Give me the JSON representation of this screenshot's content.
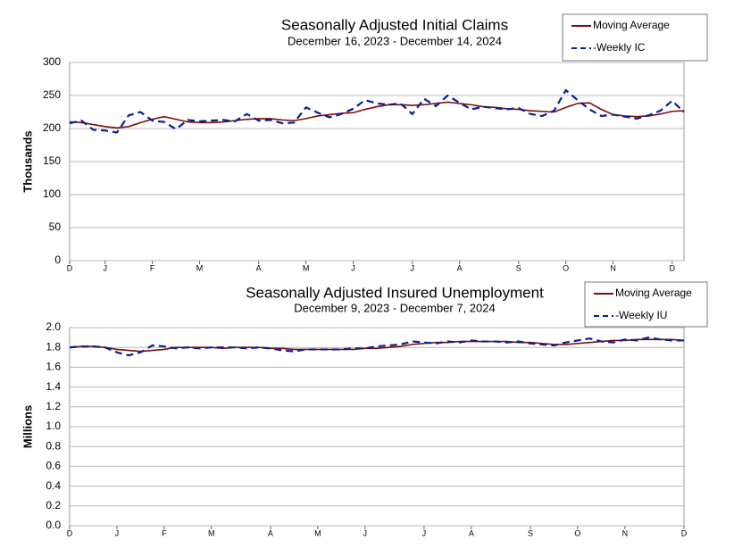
{
  "chart_data": [
    {
      "type": "line",
      "title": "Seasonally Adjusted Initial Claims",
      "subtitle": "December 16, 2023 - December 14, 2024",
      "y_label": "Thousands",
      "categories": [
        "D",
        null,
        null,
        "J",
        null,
        null,
        null,
        "F",
        null,
        null,
        null,
        "M",
        null,
        null,
        null,
        null,
        "A",
        null,
        null,
        null,
        "M",
        null,
        null,
        null,
        "J",
        null,
        null,
        null,
        null,
        "J",
        null,
        null,
        null,
        "A",
        null,
        null,
        null,
        null,
        "S",
        null,
        null,
        null,
        "O",
        null,
        null,
        null,
        "N",
        null,
        null,
        null,
        null,
        "D",
        null
      ],
      "series": [
        {
          "name": "Moving Average",
          "color": "#7b0c0c",
          "style": "solid",
          "values": [
            210,
            209,
            206,
            203,
            201,
            203,
            209,
            214,
            218,
            214,
            210,
            209,
            209,
            210,
            212,
            214,
            215,
            215,
            213,
            212,
            215,
            219,
            221,
            223,
            224,
            229,
            233,
            236,
            236,
            235,
            236,
            238,
            240,
            238,
            236,
            233,
            232,
            230,
            229,
            227,
            226,
            225,
            232,
            238,
            239,
            229,
            221,
            219,
            218,
            219,
            222,
            226,
            227
          ]
        },
        {
          "name": "-Weekly IC",
          "color": "#0a1f8f",
          "style": "dashed",
          "values": [
            208,
            212,
            198,
            197,
            194,
            220,
            225,
            212,
            210,
            199,
            213,
            211,
            212,
            213,
            211,
            222,
            212,
            213,
            208,
            209,
            232,
            224,
            217,
            222,
            230,
            243,
            238,
            236,
            238,
            222,
            245,
            234,
            250,
            239,
            229,
            233,
            231,
            229,
            231,
            222,
            219,
            227,
            258,
            243,
            229,
            219,
            221,
            218,
            215,
            220,
            227,
            242,
            225
          ]
        }
      ],
      "ylim": [
        0,
        300
      ],
      "yticks": [
        0,
        50,
        100,
        150,
        200,
        250,
        300
      ],
      "grid": true,
      "legend": "top-right"
    },
    {
      "type": "line",
      "title": "Seasonally Adjusted Insured Unemployment",
      "subtitle": "December 9, 2023 - December 7, 2024",
      "y_label": "Millions",
      "categories": [
        "D",
        null,
        null,
        null,
        "J",
        null,
        null,
        null,
        "F",
        null,
        null,
        null,
        "M",
        null,
        null,
        null,
        null,
        "A",
        null,
        null,
        null,
        "M",
        null,
        null,
        null,
        "J",
        null,
        null,
        null,
        null,
        "J",
        null,
        null,
        null,
        "A",
        null,
        null,
        null,
        null,
        "S",
        null,
        null,
        null,
        "O",
        null,
        null,
        null,
        "N",
        null,
        null,
        null,
        null,
        "D"
      ],
      "series": [
        {
          "name": "Moving Average",
          "color": "#7b0c0c",
          "style": "solid",
          "values": [
            1.8,
            1.81,
            1.81,
            1.8,
            1.78,
            1.77,
            1.76,
            1.77,
            1.78,
            1.8,
            1.8,
            1.8,
            1.8,
            1.79,
            1.8,
            1.8,
            1.8,
            1.79,
            1.79,
            1.78,
            1.78,
            1.78,
            1.78,
            1.78,
            1.78,
            1.79,
            1.79,
            1.8,
            1.81,
            1.83,
            1.84,
            1.85,
            1.85,
            1.86,
            1.86,
            1.86,
            1.86,
            1.86,
            1.85,
            1.85,
            1.84,
            1.83,
            1.83,
            1.84,
            1.85,
            1.86,
            1.87,
            1.87,
            1.88,
            1.88,
            1.88,
            1.88,
            1.87
          ]
        },
        {
          "name": "-Weekly IU",
          "color": "#0a1f8f",
          "style": "dashed",
          "values": [
            1.8,
            1.81,
            1.81,
            1.8,
            1.75,
            1.72,
            1.75,
            1.82,
            1.81,
            1.79,
            1.8,
            1.79,
            1.8,
            1.8,
            1.8,
            1.79,
            1.8,
            1.79,
            1.77,
            1.76,
            1.78,
            1.78,
            1.78,
            1.78,
            1.79,
            1.79,
            1.81,
            1.82,
            1.83,
            1.86,
            1.85,
            1.84,
            1.86,
            1.85,
            1.87,
            1.86,
            1.86,
            1.85,
            1.86,
            1.84,
            1.83,
            1.82,
            1.85,
            1.87,
            1.89,
            1.86,
            1.85,
            1.88,
            1.87,
            1.9,
            1.88,
            1.87,
            1.87
          ]
        }
      ],
      "ylim": [
        0,
        2
      ],
      "yticks": [
        {
          "value": 0,
          "label": "0.0"
        },
        0.2,
        0.4,
        0.6,
        0.8,
        {
          "value": 1,
          "label": "1.0"
        },
        1.2,
        1.4,
        1.6,
        1.8,
        {
          "value": 2,
          "label": "2.0"
        }
      ],
      "grid": true,
      "legend": "top-right"
    }
  ]
}
